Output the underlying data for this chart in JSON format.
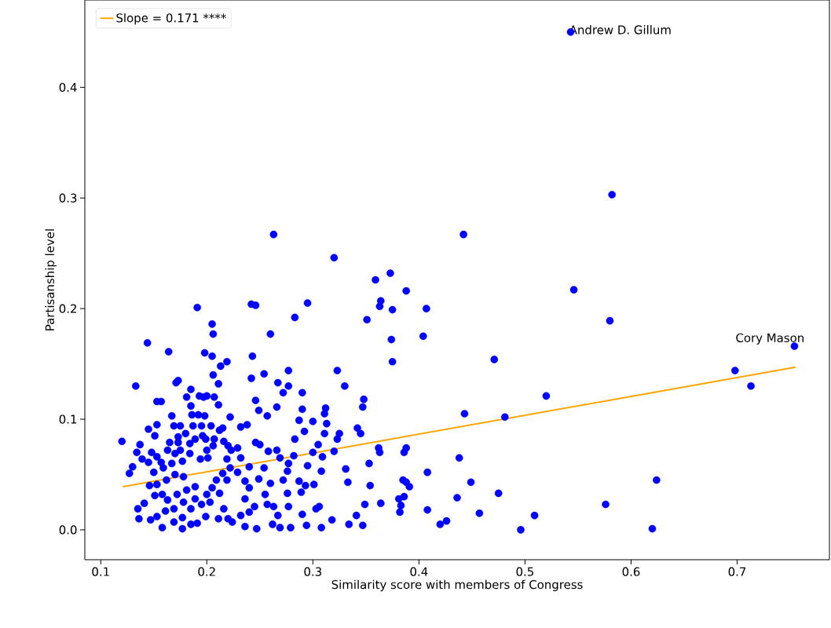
{
  "chart_data": {
    "type": "scatter",
    "xlabel": "Similarity score with members of Congress",
    "ylabel": "Partisanship level",
    "xlim": [
      0.085,
      0.787
    ],
    "ylim": [
      -0.027,
      0.479
    ],
    "xticks": [
      0.1,
      0.2,
      0.3,
      0.4,
      0.5,
      0.6,
      0.7
    ],
    "yticks": [
      {
        "value": 0,
        "label": "0.0"
      },
      0.1,
      0.2,
      0.3,
      0.4
    ],
    "legend": "top left",
    "annotations": [
      {
        "text": "Andrew D. Gillum",
        "x": 0.543,
        "y": 0.45
      },
      {
        "text": "Cory Mason",
        "x": 0.754,
        "y": 0.166
      }
    ],
    "series": [
      {
        "color": "#0000ff",
        "marker": "circle",
        "x": [
          0.543,
          0.582,
          0.442,
          0.263,
          0.32,
          0.546,
          0.58,
          0.754,
          0.698,
          0.713,
          0.471,
          0.481,
          0.52,
          0.443,
          0.438,
          0.449,
          0.457,
          0.475,
          0.496,
          0.509,
          0.576,
          0.624,
          0.62,
          0.436,
          0.426,
          0.42,
          0.408,
          0.408,
          0.407,
          0.404,
          0.388,
          0.373,
          0.359,
          0.364,
          0.363,
          0.375,
          0.374,
          0.375,
          0.351,
          0.323,
          0.33,
          0.348,
          0.347,
          0.325,
          0.345,
          0.342,
          0.362,
          0.363,
          0.353,
          0.388,
          0.386,
          0.385,
          0.388,
          0.391,
          0.386,
          0.381,
          0.383,
          0.382,
          0.364,
          0.354,
          0.349,
          0.341,
          0.347,
          0.334,
          0.333,
          0.331,
          0.318,
          0.308,
          0.303,
          0.301,
          0.306,
          0.308,
          0.309,
          0.311,
          0.313,
          0.312,
          0.311,
          0.3,
          0.3,
          0.32,
          0.323,
          0.305,
          0.295,
          0.287,
          0.289,
          0.293,
          0.29,
          0.294,
          0.277,
          0.276,
          0.272,
          0.276,
          0.277,
          0.282,
          0.283,
          0.292,
          0.287,
          0.29,
          0.29,
          0.272,
          0.277,
          0.283,
          0.295,
          0.277,
          0.267,
          0.266,
          0.257,
          0.249,
          0.246,
          0.242,
          0.243,
          0.254,
          0.26,
          0.242,
          0.246,
          0.238,
          0.232,
          0.246,
          0.25,
          0.258,
          0.266,
          0.269,
          0.254,
          0.249,
          0.26,
          0.255,
          0.257,
          0.263,
          0.267,
          0.262,
          0.269,
          0.279,
          0.247,
          0.236,
          0.224,
          0.232,
          0.24,
          0.245,
          0.236,
          0.24,
          0.236,
          0.229,
          0.24,
          0.232,
          0.229,
          0.223,
          0.219,
          0.22,
          0.215,
          0.222,
          0.215,
          0.219,
          0.209,
          0.205,
          0.212,
          0.203,
          0.216,
          0.211,
          0.22,
          0.199,
          0.191,
          0.185,
          0.177,
          0.177,
          0.185,
          0.195,
          0.2,
          0.189,
          0.178,
          0.169,
          0.161,
          0.153,
          0.158,
          0.169,
          0.136,
          0.135,
          0.147,
          0.141,
          0.151,
          0.158,
          0.163,
          0.172,
          0.181,
          0.189,
          0.178,
          0.17,
          0.162,
          0.153,
          0.146,
          0.15,
          0.159,
          0.167,
          0.177,
          0.184,
          0.194,
          0.2,
          0.206,
          0.199,
          0.196,
          0.189,
          0.184,
          0.175,
          0.17,
          0.163,
          0.153,
          0.157,
          0.145,
          0.148,
          0.139,
          0.13,
          0.127,
          0.151,
          0.173,
          0.18,
          0.187,
          0.195,
          0.204,
          0.212,
          0.207,
          0.175,
          0.186,
          0.192,
          0.198,
          0.211,
          0.197,
          0.207,
          0.2,
          0.222,
          0.216,
          0.201,
          0.173,
          0.165,
          0.153,
          0.145,
          0.137,
          0.134,
          0.12,
          0.133,
          0.144,
          0.153,
          0.157,
          0.164,
          0.167,
          0.169,
          0.185,
          0.171,
          0.173,
          0.181,
          0.185,
          0.193,
          0.191,
          0.198,
          0.205,
          0.206,
          0.205,
          0.213,
          0.219,
          0.206,
          0.211
        ],
        "values": [
          0.45,
          0.303,
          0.267,
          0.267,
          0.246,
          0.217,
          0.189,
          0.166,
          0.144,
          0.13,
          0.154,
          0.102,
          0.121,
          0.105,
          0.065,
          0.043,
          0.015,
          0.033,
          0,
          0.013,
          0.023,
          0.045,
          0.001,
          0.029,
          0.008,
          0.005,
          0.018,
          0.052,
          0.2,
          0.175,
          0.216,
          0.232,
          0.226,
          0.207,
          0.202,
          0.199,
          0.172,
          0.152,
          0.19,
          0.144,
          0.13,
          0.118,
          0.111,
          0.087,
          0.087,
          0.092,
          0.074,
          0.07,
          0.06,
          0.074,
          0.07,
          0.045,
          0.043,
          0.039,
          0.03,
          0.028,
          0.022,
          0.016,
          0.024,
          0.04,
          0.023,
          0.013,
          0.004,
          0.005,
          0.043,
          0.055,
          0.009,
          0.002,
          0.019,
          0.041,
          0.021,
          0.053,
          0.066,
          0.087,
          0.096,
          0.11,
          0.105,
          0.098,
          0.07,
          0.071,
          0.082,
          0.077,
          0.058,
          0.044,
          0.034,
          0.04,
          0.014,
          0.004,
          0.021,
          0.033,
          0.045,
          0.053,
          0.06,
          0.067,
          0.082,
          0.089,
          0.099,
          0.124,
          0.109,
          0.124,
          0.13,
          0.192,
          0.205,
          0.144,
          0.133,
          0.111,
          0.103,
          0.108,
          0.117,
          0.137,
          0.157,
          0.141,
          0.177,
          0.204,
          0.203,
          0.095,
          0.093,
          0.079,
          0.077,
          0.071,
          0.072,
          0.065,
          0.056,
          0.046,
          0.042,
          0.032,
          0.023,
          0.021,
          0.013,
          0.005,
          0.002,
          0.002,
          0.001,
          0.003,
          0.007,
          0.013,
          0.016,
          0.021,
          0.028,
          0.038,
          0.044,
          0.052,
          0.057,
          0.065,
          0.074,
          0.072,
          0.064,
          0.076,
          0.092,
          0.056,
          0.051,
          0.045,
          0.045,
          0.038,
          0.033,
          0.025,
          0.019,
          0.01,
          0.01,
          0.012,
          0.006,
          0.005,
          0.001,
          0.011,
          0.019,
          0.023,
          0.032,
          0.028,
          0.025,
          0.019,
          0.017,
          0.012,
          0.002,
          0.007,
          0.01,
          0.019,
          0.009,
          0.024,
          0.031,
          0.032,
          0.027,
          0.032,
          0.036,
          0.039,
          0.048,
          0.05,
          0.045,
          0.041,
          0.04,
          0.052,
          0.056,
          0.06,
          0.062,
          0.069,
          0.064,
          0.072,
          0.076,
          0.082,
          0.085,
          0.082,
          0.078,
          0.072,
          0.069,
          0.072,
          0.066,
          0.061,
          0.061,
          0.07,
          0.064,
          0.057,
          0.051,
          0.085,
          0.079,
          0.087,
          0.094,
          0.094,
          0.094,
          0.09,
          0.082,
          0.094,
          0.104,
          0.104,
          0.103,
          0.113,
          0.12,
          0.12,
          0.121,
          0.102,
          0.08,
          0.065,
          0.084,
          0.079,
          0.095,
          0.091,
          0.077,
          0.07,
          0.08,
          0.13,
          0.169,
          0.116,
          0.116,
          0.161,
          0.103,
          0.094,
          0.127,
          0.133,
          0.135,
          0.12,
          0.112,
          0.121,
          0.201,
          0.16,
          0.186,
          0.177,
          0.157,
          0.148,
          0.152,
          0.14,
          0.132
        ]
      },
      {
        "type": "line",
        "name": "Slope = 0.171 ****",
        "color": "#ffa500",
        "x": [
          0.121,
          0.755
        ],
        "values": [
          0.039,
          0.147
        ]
      }
    ]
  }
}
